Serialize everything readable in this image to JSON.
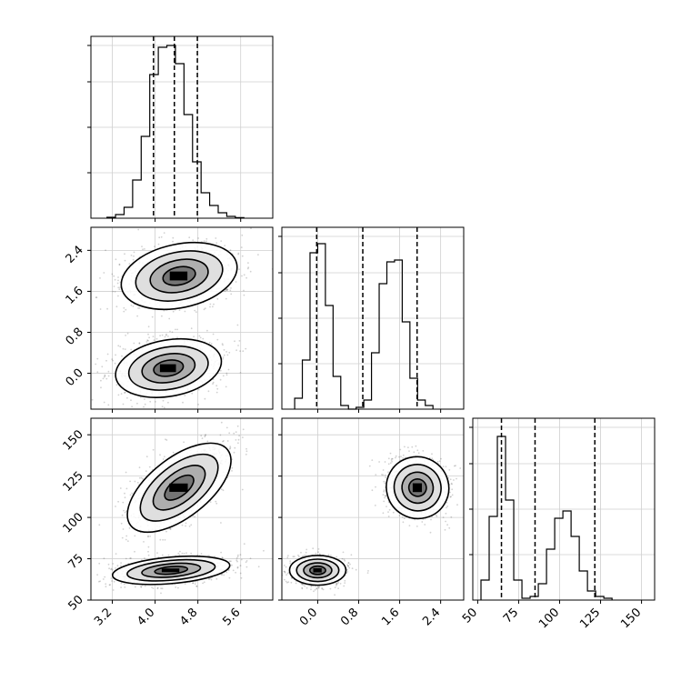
{
  "chart_data": {
    "type": "corner",
    "title": "",
    "grid": true,
    "panels": [
      {
        "kind": "histogram",
        "row": 0,
        "col": 0,
        "xlim": [
          2.8,
          6.2
        ],
        "ylim": [
          0,
          1.0
        ],
        "xticks": [],
        "yticks": [],
        "edges_start": 3.1,
        "bin_width": 0.16,
        "values": [
          0.005,
          0.02,
          0.06,
          0.21,
          0.45,
          0.79,
          0.94,
          0.95,
          0.85,
          0.57,
          0.31,
          0.14,
          0.07,
          0.03,
          0.01,
          0.003
        ],
        "quantiles": [
          3.97,
          4.36,
          4.79
        ]
      },
      {
        "kind": "scatter-density",
        "row": 1,
        "col": 0,
        "xlim": [
          2.8,
          6.2
        ],
        "ylim": [
          -0.7,
          2.85
        ],
        "xticks": [],
        "yticks": [
          0.0,
          0.8,
          1.6,
          2.4
        ],
        "ytick_labels": [
          "0.0",
          "0.8",
          "1.6",
          "2.4"
        ],
        "clusters": [
          {
            "cx": 4.45,
            "cy": 1.9,
            "rx": 1.1,
            "ry": 0.62,
            "angle": -12,
            "n": 900
          },
          {
            "cx": 4.25,
            "cy": 0.1,
            "rx": 1.0,
            "ry": 0.55,
            "angle": -10,
            "n": 900
          }
        ]
      },
      {
        "kind": "histogram",
        "row": 1,
        "col": 1,
        "xlim": [
          -0.7,
          2.85
        ],
        "ylim": [
          0,
          1.0
        ],
        "xticks": [],
        "yticks": [],
        "edges_start": -0.45,
        "bin_width": 0.15,
        "values": [
          0.06,
          0.27,
          0.86,
          0.91,
          0.57,
          0.18,
          0.02,
          0.0,
          0.01,
          0.05,
          0.31,
          0.69,
          0.81,
          0.82,
          0.48,
          0.17,
          0.05,
          0.02
        ],
        "quantiles": [
          -0.02,
          0.88,
          1.94
        ]
      },
      {
        "kind": "scatter-density",
        "row": 2,
        "col": 0,
        "xlim": [
          2.8,
          6.2
        ],
        "ylim": [
          50,
          160
        ],
        "xticks": [
          3.2,
          4.0,
          4.8,
          5.6
        ],
        "xtick_labels": [
          "3.2",
          "4.0",
          "4.8",
          "5.6"
        ],
        "yticks": [
          50,
          75,
          100,
          125,
          150
        ],
        "ytick_labels": [
          "50",
          "75",
          "100",
          "125",
          "150"
        ],
        "clusters": [
          {
            "cx": 4.45,
            "cy": 118,
            "rx": 1.15,
            "ry": 18,
            "angle": -38,
            "n": 900
          },
          {
            "cx": 4.3,
            "cy": 68,
            "rx": 1.1,
            "ry": 8,
            "angle": -5,
            "n": 900
          }
        ]
      },
      {
        "kind": "scatter-density",
        "row": 2,
        "col": 1,
        "xlim": [
          -0.7,
          2.85
        ],
        "ylim": [
          50,
          160
        ],
        "xticks": [
          0.0,
          0.8,
          1.6,
          2.4
        ],
        "xtick_labels": [
          "0.0",
          "0.8",
          "1.6",
          "2.4"
        ],
        "yticks": [],
        "clusters": [
          {
            "cx": 1.95,
            "cy": 118,
            "rx": 0.6,
            "ry": 19,
            "angle": -60,
            "n": 900
          },
          {
            "cx": 0.0,
            "cy": 68,
            "rx": 0.55,
            "ry": 9,
            "angle": 0,
            "n": 900
          }
        ]
      },
      {
        "kind": "histogram",
        "row": 2,
        "col": 2,
        "xlim": [
          47,
          158
        ],
        "ylim": [
          0,
          1.0
        ],
        "xticks": [
          50,
          75,
          100,
          125,
          150
        ],
        "xtick_labels": [
          "50",
          "75",
          "100",
          "125",
          "150"
        ],
        "yticks": [],
        "edges_start": 52,
        "bin_width": 5,
        "values": [
          0.11,
          0.46,
          0.9,
          0.55,
          0.11,
          0.01,
          0.02,
          0.09,
          0.28,
          0.45,
          0.49,
          0.35,
          0.16,
          0.05,
          0.02,
          0.01
        ],
        "quantiles": [
          64.5,
          85,
          121.5
        ]
      }
    ]
  }
}
